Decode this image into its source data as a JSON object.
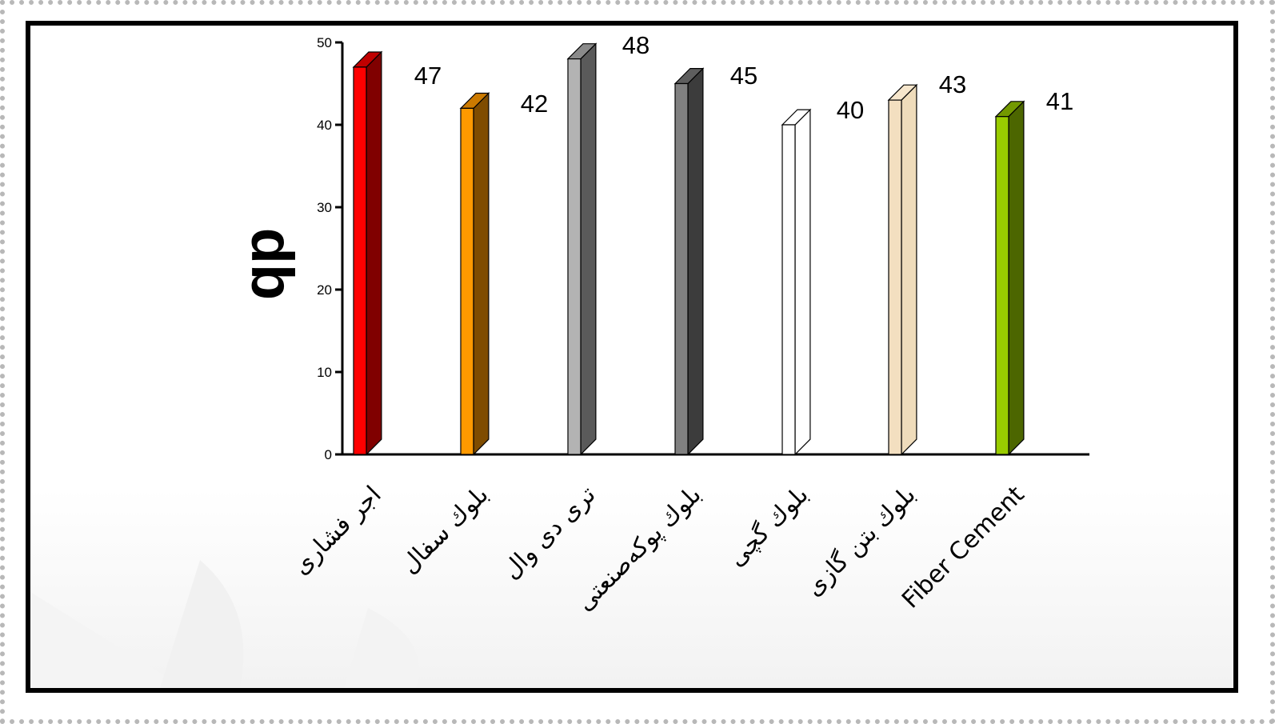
{
  "chart_data": {
    "type": "bar",
    "title": "",
    "xlabel": "",
    "ylabel": "db",
    "ylim": [
      0,
      50
    ],
    "yticks": [
      0,
      10,
      20,
      30,
      40,
      50
    ],
    "grid": false,
    "legend": "none",
    "categories": [
      "اجر فشاری",
      "بلوك سفال",
      "تری دی وال",
      "بلوك پوكه‌صنعتی",
      "بلوك گچی",
      "بلوك بتن گازی",
      "Fiber Cement"
    ],
    "values": [
      47,
      42,
      48,
      45,
      40,
      43,
      41
    ],
    "colors": [
      {
        "front": "#ff0000",
        "side": "#800000",
        "top": "#c00000"
      },
      {
        "front": "#ff9900",
        "side": "#7f4c00",
        "top": "#cc7a00"
      },
      {
        "front": "#b3b3b3",
        "side": "#5a5a5a",
        "top": "#8a8a8a"
      },
      {
        "front": "#808080",
        "side": "#3c3c3c",
        "top": "#5e5e5e"
      },
      {
        "front": "#ffffff",
        "side": "#ffffff",
        "top": "#ffffff"
      },
      {
        "front": "#f3dfc0",
        "side": "#efdcbb",
        "top": "#f6e6cc"
      },
      {
        "front": "#99cc00",
        "side": "#4c6600",
        "top": "#739900"
      }
    ]
  }
}
